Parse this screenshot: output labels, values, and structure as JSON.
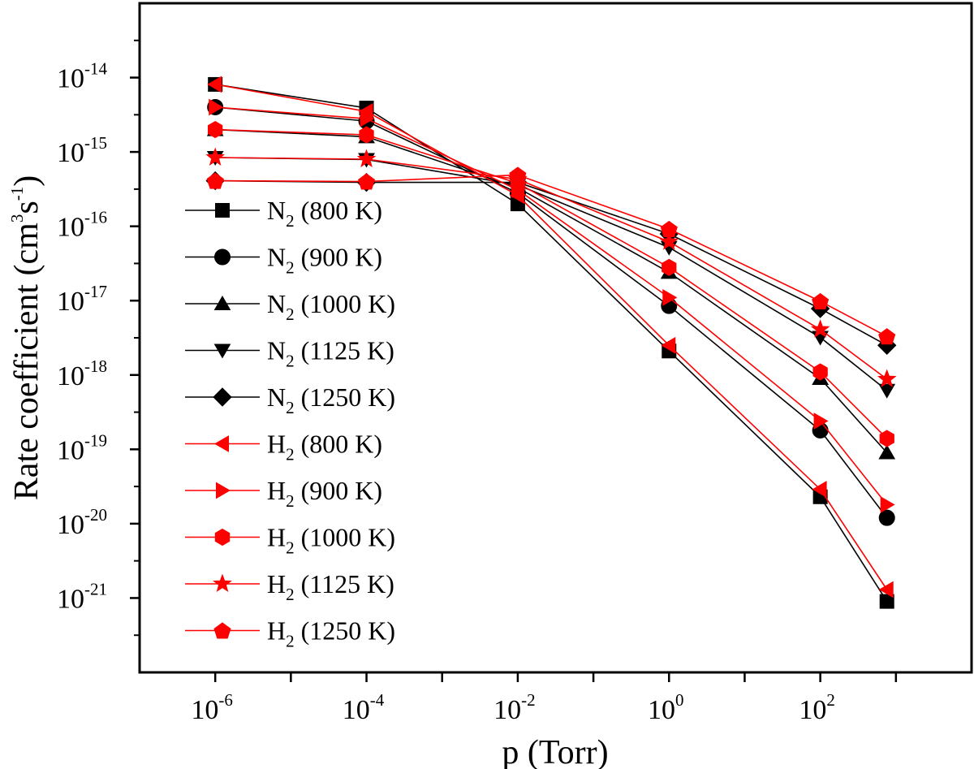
{
  "chart_data": {
    "type": "line",
    "x_scale": "log",
    "y_scale": "log",
    "xlabel": "p (Torr)",
    "ylabel": "Rate coefficient (cm3s-1)",
    "ylabel_parts": {
      "main": "Rate coefficient (cm",
      "exp1": "3",
      "mid": "s",
      "exp2": "-1",
      "end": ")"
    },
    "xlim_exp": [
      -7,
      4
    ],
    "ylim_exp": [
      -22,
      -13
    ],
    "x_ticks": [
      {
        "base": "10",
        "exp": "-6",
        "value": -6
      },
      {
        "base": "10",
        "exp": "-4",
        "value": -4
      },
      {
        "base": "10",
        "exp": "-2",
        "value": -2
      },
      {
        "base": "10",
        "exp": "0",
        "value": 0
      },
      {
        "base": "10",
        "exp": "2",
        "value": 2
      }
    ],
    "y_ticks": [
      {
        "base": "10",
        "exp": "-14",
        "value": -14
      },
      {
        "base": "10",
        "exp": "-15",
        "value": -15
      },
      {
        "base": "10",
        "exp": "-16",
        "value": -16
      },
      {
        "base": "10",
        "exp": "-17",
        "value": -17
      },
      {
        "base": "10",
        "exp": "-18",
        "value": -18
      },
      {
        "base": "10",
        "exp": "-19",
        "value": -19
      },
      {
        "base": "10",
        "exp": "-20",
        "value": -20
      },
      {
        "base": "10",
        "exp": "-21",
        "value": -21
      }
    ],
    "x": [
      1e-06,
      0.0001,
      0.01,
      1,
      100,
      760
    ],
    "series": [
      {
        "name": "N2 (800 K)",
        "gas": "N",
        "sub": "2",
        "temp": " (800 K)",
        "color": "#000000",
        "marker": "square",
        "values": [
          8.1e-15,
          3.9e-15,
          2e-16,
          2.1e-18,
          2.3e-20,
          9e-22
        ]
      },
      {
        "name": "N2 (900 K)",
        "gas": "N",
        "sub": "2",
        "temp": " (900 K)",
        "color": "#000000",
        "marker": "circle",
        "values": [
          4e-15,
          2.6e-15,
          2.8e-16,
          8.5e-18,
          1.8e-19,
          1.2e-20
        ]
      },
      {
        "name": "N2 (1000 K)",
        "gas": "N",
        "sub": "2",
        "temp": " (1000 K)",
        "color": "#000000",
        "marker": "triangle-up",
        "values": [
          2e-15,
          1.6e-15,
          3.3e-16,
          2.4e-17,
          9e-19,
          9e-20
        ]
      },
      {
        "name": "N2 (1125 K)",
        "gas": "N",
        "sub": "2",
        "temp": " (1125 K)",
        "color": "#000000",
        "marker": "triangle-down",
        "values": [
          8.4e-16,
          7.9e-16,
          3.6e-16,
          5.2e-17,
          3.2e-18,
          6.2e-19
        ]
      },
      {
        "name": "N2 (1250 K)",
        "gas": "N",
        "sub": "2",
        "temp": " (1250 K)",
        "color": "#000000",
        "marker": "diamond",
        "values": [
          4.1e-16,
          3.9e-16,
          3.9e-16,
          7.9e-17,
          7.8e-18,
          2.5e-18
        ]
      },
      {
        "name": "H2 (800 K)",
        "gas": "H",
        "sub": "2",
        "temp": " (800 K)",
        "color": "#ff0000",
        "marker": "triangle-left",
        "values": [
          8.1e-15,
          3.5e-15,
          2.6e-16,
          2.5e-18,
          2.9e-20,
          1.3e-21
        ]
      },
      {
        "name": "H2 (900 K)",
        "gas": "H",
        "sub": "2",
        "temp": " (900 K)",
        "color": "#ff0000",
        "marker": "triangle-right",
        "values": [
          4e-15,
          2.8e-15,
          3.1e-16,
          1.1e-17,
          2.4e-19,
          1.8e-20
        ]
      },
      {
        "name": "H2 (1000 K)",
        "gas": "H",
        "sub": "2",
        "temp": " (1000 K)",
        "color": "#ff0000",
        "marker": "hexagon",
        "values": [
          2e-15,
          1.7e-15,
          3.8e-16,
          2.8e-17,
          1.1e-18,
          1.4e-19
        ]
      },
      {
        "name": "H2 (1125 K)",
        "gas": "H",
        "sub": "2",
        "temp": " (1125 K)",
        "color": "#ff0000",
        "marker": "star",
        "values": [
          8.4e-16,
          8e-16,
          4.3e-16,
          6.2e-17,
          4.1e-18,
          8.8e-19
        ]
      },
      {
        "name": "H2 (1250 K)",
        "gas": "H",
        "sub": "2",
        "temp": " (1250 K)",
        "color": "#ff0000",
        "marker": "pentagon",
        "values": [
          4.1e-16,
          4e-16,
          4.9e-16,
          9.2e-17,
          9.8e-18,
          3.3e-18
        ]
      }
    ],
    "legend_position": "left"
  }
}
